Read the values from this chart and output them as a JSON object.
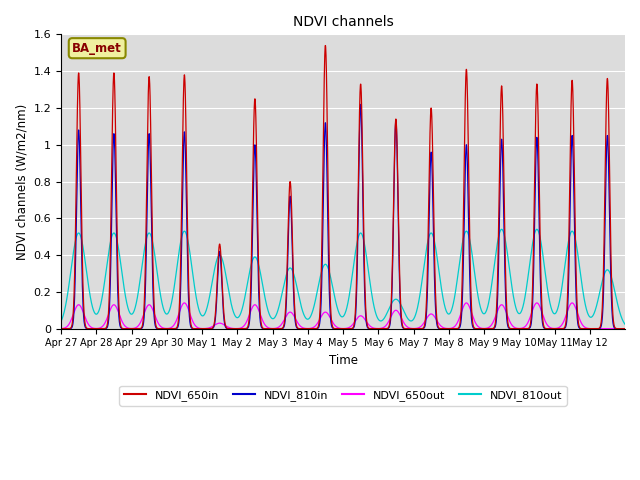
{
  "title": "NDVI channels",
  "ylabel": "NDVI channels (W/m2/nm)",
  "xlabel": "Time",
  "annotation": "BA_met",
  "ylim": [
    0,
    1.6
  ],
  "yticks": [
    0.0,
    0.2,
    0.4,
    0.6,
    0.8,
    1.0,
    1.2,
    1.4,
    1.6
  ],
  "colors": {
    "NDVI_650in": "#cc0000",
    "NDVI_810in": "#0000cc",
    "NDVI_650out": "#ff00ff",
    "NDVI_810out": "#00cccc"
  },
  "background_color": "#dcdcdc",
  "tick_labels": [
    "Apr 27",
    "Apr 28",
    "Apr 29",
    "Apr 30",
    "May 1",
    "May 2",
    "May 3",
    "May 4",
    "May 5",
    "May 6",
    "May 7",
    "May 8",
    "May 9",
    "May 10",
    "May 11",
    "May 12"
  ],
  "peak_650in": [
    1.39,
    1.39,
    1.37,
    1.38,
    0.46,
    1.25,
    0.8,
    1.54,
    1.33,
    1.14,
    1.2,
    1.41,
    1.32,
    1.33,
    1.35,
    1.36
  ],
  "peak_810in": [
    1.08,
    1.06,
    1.06,
    1.07,
    0.42,
    1.0,
    0.72,
    1.12,
    1.22,
    1.13,
    0.96,
    1.0,
    1.03,
    1.04,
    1.05,
    1.05
  ],
  "peak_650out": [
    0.13,
    0.13,
    0.13,
    0.14,
    0.03,
    0.13,
    0.09,
    0.09,
    0.07,
    0.1,
    0.08,
    0.14,
    0.13,
    0.14,
    0.14,
    0.0
  ],
  "peak_810out": [
    0.52,
    0.52,
    0.52,
    0.53,
    0.4,
    0.39,
    0.33,
    0.35,
    0.52,
    0.16,
    0.52,
    0.53,
    0.54,
    0.54,
    0.53,
    0.32
  ]
}
